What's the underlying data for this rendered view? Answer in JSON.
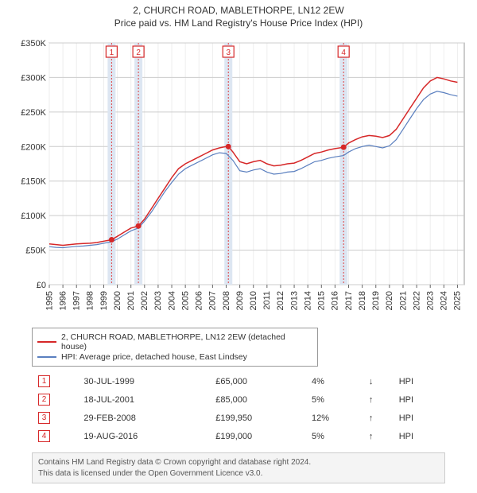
{
  "title_line1": "2, CHURCH ROAD, MABLETHORPE, LN12 2EW",
  "title_line2": "Price paid vs. HM Land Registry's House Price Index (HPI)",
  "chart": {
    "type": "line",
    "plot_background": "#ffffff",
    "grid_color": "#cccccc",
    "minor_grid_color": "#eeeeee",
    "tx_band_color": "#dde6f2",
    "tx_dash_color": "#e04040",
    "x": {
      "min": 1995,
      "max": 2025.5,
      "ticks": [
        1995,
        1996,
        1997,
        1998,
        1999,
        2000,
        2001,
        2002,
        2003,
        2004,
        2005,
        2006,
        2007,
        2008,
        2009,
        2010,
        2011,
        2012,
        2013,
        2014,
        2015,
        2016,
        2017,
        2018,
        2019,
        2020,
        2021,
        2022,
        2023,
        2024,
        2025
      ]
    },
    "y": {
      "min": 0,
      "max": 350000,
      "tick_step": 50000,
      "tick_labels": [
        "£0",
        "£50K",
        "£100K",
        "£150K",
        "£200K",
        "£250K",
        "£300K",
        "£350K"
      ]
    },
    "tx_markers": [
      {
        "n": "1",
        "year": 1999.58
      },
      {
        "n": "2",
        "year": 2001.55
      },
      {
        "n": "3",
        "year": 2008.16
      },
      {
        "n": "4",
        "year": 2016.63
      }
    ],
    "series": [
      {
        "name": "2, CHURCH ROAD, MABLETHORPE, LN12 2EW (detached house)",
        "color": "#d62728",
        "width": 1.5,
        "points": [
          [
            1995.0,
            59000
          ],
          [
            1995.5,
            58000
          ],
          [
            1996.0,
            57000
          ],
          [
            1996.5,
            58000
          ],
          [
            1997.0,
            59000
          ],
          [
            1997.5,
            59500
          ],
          [
            1998.0,
            60000
          ],
          [
            1998.5,
            61000
          ],
          [
            1999.0,
            63000
          ],
          [
            1999.58,
            65000
          ],
          [
            2000.0,
            70000
          ],
          [
            2000.5,
            76000
          ],
          [
            2001.0,
            82000
          ],
          [
            2001.55,
            85000
          ],
          [
            2002.0,
            95000
          ],
          [
            2002.5,
            110000
          ],
          [
            2003.0,
            125000
          ],
          [
            2003.5,
            140000
          ],
          [
            2004.0,
            155000
          ],
          [
            2004.5,
            168000
          ],
          [
            2005.0,
            175000
          ],
          [
            2005.5,
            180000
          ],
          [
            2006.0,
            185000
          ],
          [
            2006.5,
            190000
          ],
          [
            2007.0,
            195000
          ],
          [
            2007.5,
            198000
          ],
          [
            2008.0,
            200000
          ],
          [
            2008.16,
            199950
          ],
          [
            2008.5,
            192000
          ],
          [
            2009.0,
            178000
          ],
          [
            2009.5,
            175000
          ],
          [
            2010.0,
            178000
          ],
          [
            2010.5,
            180000
          ],
          [
            2011.0,
            175000
          ],
          [
            2011.5,
            172000
          ],
          [
            2012.0,
            173000
          ],
          [
            2012.5,
            175000
          ],
          [
            2013.0,
            176000
          ],
          [
            2013.5,
            180000
          ],
          [
            2014.0,
            185000
          ],
          [
            2014.5,
            190000
          ],
          [
            2015.0,
            192000
          ],
          [
            2015.5,
            195000
          ],
          [
            2016.0,
            197000
          ],
          [
            2016.63,
            199000
          ],
          [
            2017.0,
            205000
          ],
          [
            2017.5,
            210000
          ],
          [
            2018.0,
            214000
          ],
          [
            2018.5,
            216000
          ],
          [
            2019.0,
            215000
          ],
          [
            2019.5,
            213000
          ],
          [
            2020.0,
            216000
          ],
          [
            2020.5,
            225000
          ],
          [
            2021.0,
            240000
          ],
          [
            2021.5,
            255000
          ],
          [
            2022.0,
            270000
          ],
          [
            2022.5,
            285000
          ],
          [
            2023.0,
            295000
          ],
          [
            2023.5,
            300000
          ],
          [
            2024.0,
            298000
          ],
          [
            2024.5,
            295000
          ],
          [
            2025.0,
            293000
          ]
        ]
      },
      {
        "name": "HPI: Average price, detached house, East Lindsey",
        "color": "#5a7fbf",
        "width": 1.2,
        "points": [
          [
            1995.0,
            55000
          ],
          [
            1995.5,
            54000
          ],
          [
            1996.0,
            53500
          ],
          [
            1996.5,
            54500
          ],
          [
            1997.0,
            55500
          ],
          [
            1997.5,
            56000
          ],
          [
            1998.0,
            57000
          ],
          [
            1998.5,
            58000
          ],
          [
            1999.0,
            60000
          ],
          [
            1999.58,
            62000
          ],
          [
            2000.0,
            66000
          ],
          [
            2000.5,
            72000
          ],
          [
            2001.0,
            78000
          ],
          [
            2001.55,
            82000
          ],
          [
            2002.0,
            92000
          ],
          [
            2002.5,
            105000
          ],
          [
            2003.0,
            120000
          ],
          [
            2003.5,
            135000
          ],
          [
            2004.0,
            148000
          ],
          [
            2004.5,
            160000
          ],
          [
            2005.0,
            168000
          ],
          [
            2005.5,
            173000
          ],
          [
            2006.0,
            178000
          ],
          [
            2006.5,
            183000
          ],
          [
            2007.0,
            188000
          ],
          [
            2007.5,
            191000
          ],
          [
            2008.0,
            190000
          ],
          [
            2008.5,
            180000
          ],
          [
            2009.0,
            165000
          ],
          [
            2009.5,
            163000
          ],
          [
            2010.0,
            166000
          ],
          [
            2010.5,
            168000
          ],
          [
            2011.0,
            163000
          ],
          [
            2011.5,
            160000
          ],
          [
            2012.0,
            161000
          ],
          [
            2012.5,
            163000
          ],
          [
            2013.0,
            164000
          ],
          [
            2013.5,
            168000
          ],
          [
            2014.0,
            173000
          ],
          [
            2014.5,
            178000
          ],
          [
            2015.0,
            180000
          ],
          [
            2015.5,
            183000
          ],
          [
            2016.0,
            185000
          ],
          [
            2016.63,
            187000
          ],
          [
            2017.0,
            192000
          ],
          [
            2017.5,
            197000
          ],
          [
            2018.0,
            200000
          ],
          [
            2018.5,
            202000
          ],
          [
            2019.0,
            200000
          ],
          [
            2019.5,
            198000
          ],
          [
            2020.0,
            201000
          ],
          [
            2020.5,
            210000
          ],
          [
            2021.0,
            225000
          ],
          [
            2021.5,
            240000
          ],
          [
            2022.0,
            255000
          ],
          [
            2022.5,
            268000
          ],
          [
            2023.0,
            276000
          ],
          [
            2023.5,
            280000
          ],
          [
            2024.0,
            278000
          ],
          [
            2024.5,
            275000
          ],
          [
            2025.0,
            273000
          ]
        ]
      }
    ]
  },
  "legend": {
    "row1_label": "2, CHURCH ROAD, MABLETHORPE, LN12 2EW (detached house)",
    "row1_color": "#d62728",
    "row2_label": "HPI: Average price, detached house, East Lindsey",
    "row2_color": "#5a7fbf"
  },
  "transactions": [
    {
      "n": "1",
      "date": "30-JUL-1999",
      "price": "£65,000",
      "delta": "4%",
      "arrow": "↓",
      "vs": "HPI"
    },
    {
      "n": "2",
      "date": "18-JUL-2001",
      "price": "£85,000",
      "delta": "5%",
      "arrow": "↑",
      "vs": "HPI"
    },
    {
      "n": "3",
      "date": "29-FEB-2008",
      "price": "£199,950",
      "delta": "12%",
      "arrow": "↑",
      "vs": "HPI"
    },
    {
      "n": "4",
      "date": "19-AUG-2016",
      "price": "£199,000",
      "delta": "5%",
      "arrow": "↑",
      "vs": "HPI"
    }
  ],
  "credits_line1": "Contains HM Land Registry data © Crown copyright and database right 2024.",
  "credits_line2": "This data is licensed under the Open Government Licence v3.0."
}
